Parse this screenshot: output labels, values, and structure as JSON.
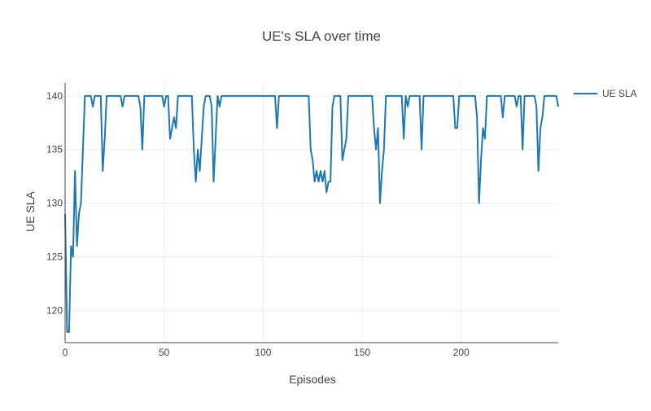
{
  "chart_data": {
    "type": "line",
    "title": "UE's SLA over time",
    "xlabel": "Episodes",
    "ylabel": "UE SLA",
    "xlim": [
      0,
      249
    ],
    "ylim": [
      117,
      141.2
    ],
    "x_ticks": [
      0,
      50,
      100,
      150,
      200
    ],
    "y_ticks": [
      120,
      125,
      130,
      135,
      140
    ],
    "x_tick_labels": [
      "0",
      "50",
      "100",
      "150",
      "200"
    ],
    "y_tick_labels": [
      "120",
      "125",
      "130",
      "135",
      "140"
    ],
    "grid": true,
    "legend": {
      "position": "top-right-outside"
    },
    "series": [
      {
        "name": "UE SLA",
        "color": "#1f77b4",
        "points": [
          [
            0,
            129
          ],
          [
            1,
            118
          ],
          [
            2,
            118
          ],
          [
            3,
            126
          ],
          [
            4,
            125
          ],
          [
            5,
            133
          ],
          [
            6,
            126
          ],
          [
            7,
            129
          ],
          [
            8,
            130
          ],
          [
            9,
            135
          ],
          [
            10,
            140
          ],
          [
            13,
            140
          ],
          [
            14,
            139
          ],
          [
            15,
            140
          ],
          [
            18,
            140
          ],
          [
            19,
            133
          ],
          [
            20,
            136
          ],
          [
            21,
            140
          ],
          [
            28,
            140
          ],
          [
            29,
            139
          ],
          [
            30,
            140
          ],
          [
            37,
            140
          ],
          [
            38,
            139
          ],
          [
            39,
            135
          ],
          [
            40,
            140
          ],
          [
            49,
            140
          ],
          [
            50,
            139
          ],
          [
            51,
            140
          ],
          [
            52,
            140
          ],
          [
            53,
            136
          ],
          [
            54,
            137
          ],
          [
            55,
            138
          ],
          [
            56,
            137
          ],
          [
            57,
            140
          ],
          [
            64,
            140
          ],
          [
            65,
            135
          ],
          [
            66,
            132
          ],
          [
            67,
            135
          ],
          [
            68,
            133
          ],
          [
            69,
            136
          ],
          [
            70,
            139
          ],
          [
            71,
            140
          ],
          [
            73,
            140
          ],
          [
            74,
            139
          ],
          [
            75,
            132
          ],
          [
            76,
            136
          ],
          [
            77,
            140
          ],
          [
            78,
            139
          ],
          [
            79,
            140
          ],
          [
            106,
            140
          ],
          [
            107,
            137
          ],
          [
            108,
            140
          ],
          [
            123,
            140
          ],
          [
            124,
            135
          ],
          [
            125,
            134
          ],
          [
            126,
            132
          ],
          [
            127,
            133
          ],
          [
            128,
            132
          ],
          [
            129,
            133
          ],
          [
            130,
            132
          ],
          [
            131,
            133
          ],
          [
            132,
            131
          ],
          [
            133,
            132
          ],
          [
            134,
            132
          ],
          [
            135,
            139
          ],
          [
            136,
            140
          ],
          [
            139,
            140
          ],
          [
            140,
            134
          ],
          [
            141,
            135
          ],
          [
            142,
            136
          ],
          [
            143,
            140
          ],
          [
            155,
            140
          ],
          [
            156,
            137
          ],
          [
            157,
            135
          ],
          [
            158,
            137
          ],
          [
            159,
            130
          ],
          [
            160,
            133
          ],
          [
            161,
            135
          ],
          [
            162,
            140
          ],
          [
            170,
            140
          ],
          [
            171,
            136
          ],
          [
            172,
            140
          ],
          [
            173,
            139
          ],
          [
            174,
            140
          ],
          [
            179,
            140
          ],
          [
            180,
            135
          ],
          [
            181,
            140
          ],
          [
            196,
            140
          ],
          [
            197,
            137
          ],
          [
            198,
            137
          ],
          [
            199,
            140
          ],
          [
            207,
            140
          ],
          [
            208,
            138
          ],
          [
            209,
            130
          ],
          [
            210,
            134
          ],
          [
            211,
            137
          ],
          [
            212,
            136
          ],
          [
            213,
            140
          ],
          [
            220,
            140
          ],
          [
            221,
            138
          ],
          [
            222,
            140
          ],
          [
            227,
            140
          ],
          [
            228,
            139
          ],
          [
            229,
            140
          ],
          [
            230,
            140
          ],
          [
            231,
            135
          ],
          [
            232,
            140
          ],
          [
            237,
            140
          ],
          [
            238,
            139
          ],
          [
            239,
            133
          ],
          [
            240,
            137
          ],
          [
            241,
            138
          ],
          [
            242,
            140
          ],
          [
            248,
            140
          ],
          [
            249,
            139
          ]
        ]
      }
    ]
  }
}
